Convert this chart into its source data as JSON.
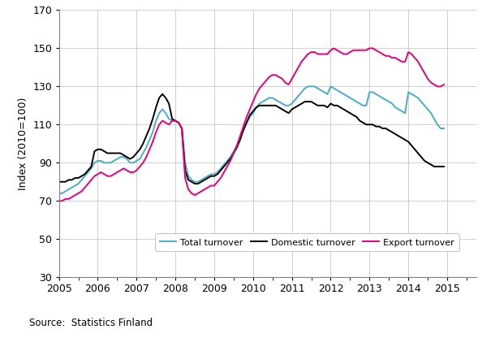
{
  "title": "",
  "ylabel": "Index (2010=100)",
  "source": "Source:  Statistics Finland",
  "ylim": [
    30,
    170
  ],
  "yticks": [
    30,
    50,
    70,
    90,
    110,
    130,
    150,
    170
  ],
  "total_color": "#4bacc6",
  "domestic_color": "#000000",
  "export_color": "#e6007e",
  "linewidth": 1.4,
  "total_turnover": [
    74,
    74,
    75,
    76,
    77,
    78,
    79,
    81,
    83,
    85,
    87,
    90,
    91,
    91,
    90,
    90,
    90,
    91,
    92,
    93,
    93,
    92,
    90,
    90,
    91,
    92,
    95,
    98,
    102,
    106,
    112,
    116,
    118,
    116,
    113,
    112,
    112,
    111,
    108,
    90,
    83,
    81,
    80,
    80,
    81,
    82,
    83,
    84,
    84,
    85,
    87,
    89,
    91,
    93,
    96,
    99,
    103,
    107,
    111,
    114,
    116,
    119,
    121,
    122,
    123,
    124,
    124,
    123,
    122,
    121,
    120,
    120,
    121,
    123,
    125,
    127,
    129,
    130,
    130,
    130,
    129,
    128,
    127,
    126,
    130,
    129,
    128,
    127,
    126,
    125,
    124,
    123,
    122,
    121,
    120,
    120,
    127,
    127,
    126,
    125,
    124,
    123,
    122,
    121,
    119,
    118,
    117,
    116,
    127,
    126,
    125,
    124,
    122,
    120,
    118,
    116,
    113,
    110,
    108,
    108
  ],
  "domestic_turnover": [
    80,
    80,
    80,
    81,
    81,
    82,
    82,
    83,
    84,
    86,
    88,
    96,
    97,
    97,
    96,
    95,
    95,
    95,
    95,
    95,
    94,
    93,
    92,
    93,
    95,
    97,
    100,
    104,
    108,
    113,
    119,
    124,
    126,
    124,
    121,
    113,
    112,
    111,
    108,
    86,
    81,
    80,
    79,
    79,
    80,
    81,
    82,
    83,
    83,
    84,
    86,
    88,
    90,
    92,
    95,
    98,
    102,
    107,
    111,
    115,
    117,
    119,
    120,
    120,
    120,
    120,
    120,
    120,
    119,
    118,
    117,
    116,
    118,
    119,
    120,
    121,
    122,
    122,
    122,
    121,
    120,
    120,
    120,
    119,
    121,
    120,
    120,
    119,
    118,
    117,
    116,
    115,
    114,
    112,
    111,
    110,
    110,
    110,
    109,
    109,
    108,
    108,
    107,
    106,
    105,
    104,
    103,
    102,
    101,
    99,
    97,
    95,
    93,
    91,
    90,
    89,
    88,
    88,
    88,
    88
  ],
  "export_turnover": [
    70,
    70,
    71,
    71,
    72,
    73,
    74,
    75,
    77,
    79,
    81,
    83,
    84,
    85,
    84,
    83,
    83,
    84,
    85,
    86,
    87,
    86,
    85,
    85,
    86,
    88,
    90,
    93,
    97,
    101,
    106,
    110,
    112,
    111,
    110,
    112,
    112,
    111,
    108,
    82,
    76,
    74,
    73,
    74,
    75,
    76,
    77,
    78,
    78,
    80,
    82,
    85,
    88,
    91,
    95,
    99,
    104,
    109,
    114,
    118,
    122,
    126,
    129,
    131,
    133,
    135,
    136,
    136,
    135,
    134,
    132,
    131,
    134,
    137,
    140,
    143,
    145,
    147,
    148,
    148,
    147,
    147,
    147,
    147,
    149,
    150,
    149,
    148,
    147,
    147,
    148,
    149,
    149,
    149,
    149,
    149,
    150,
    150,
    149,
    148,
    147,
    146,
    146,
    145,
    145,
    144,
    143,
    143,
    148,
    147,
    145,
    143,
    140,
    137,
    134,
    132,
    131,
    130,
    130,
    131
  ],
  "legend_labels": [
    "Total turnover",
    "Domestic turnover",
    "Export turnover"
  ]
}
